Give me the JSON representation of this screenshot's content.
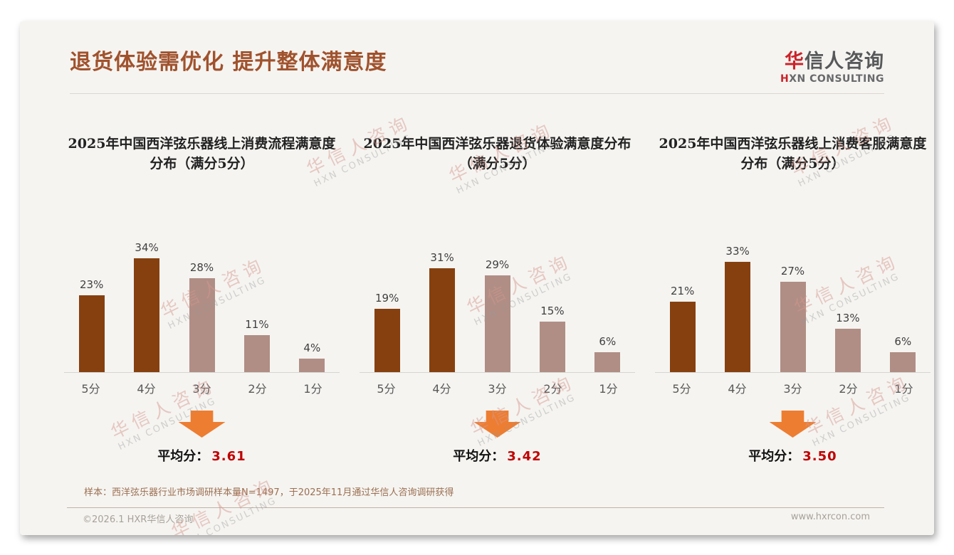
{
  "slide": {
    "title": "退货体验需优化 提升整体满意度",
    "logo": {
      "cn_red": "华",
      "cn_rest": "信人咨询",
      "en_red": "H",
      "en_rest": "XN CONSULTING"
    },
    "watermark": {
      "cn": "华信人咨询",
      "en": "HXN CONSULTING"
    },
    "footnote": "样本：西洋弦乐器行业市场调研样本量N=1497，于2025年11月通过华信人咨询调研获得",
    "footer": {
      "left": "©2026.1 HXR华信人咨询",
      "right": "www.hxrcon.com"
    }
  },
  "colors": {
    "accent": "#A0522D",
    "logo_red": "#CC2229",
    "bar_dark": "#86400F",
    "bar_light": "#B08E85",
    "arrow": "#ED7D31",
    "avg_red": "#C00000"
  },
  "chart_data": [
    {
      "type": "bar",
      "title": "2025年中国西洋弦乐器线上消费流程满意度分布（满分5分）",
      "categories": [
        "5分",
        "4分",
        "3分",
        "2分",
        "1分"
      ],
      "values": [
        23,
        34,
        28,
        11,
        4
      ],
      "unit": "%",
      "ylim": [
        0,
        40
      ],
      "grid": false,
      "bar_color_roles": [
        "dark",
        "dark",
        "light",
        "light",
        "light"
      ],
      "average_label": "平均分：",
      "average": "3.61"
    },
    {
      "type": "bar",
      "title": "2025年中国西洋弦乐器退货体验满意度分布（满分5分）",
      "categories": [
        "5分",
        "4分",
        "3分",
        "2分",
        "1分"
      ],
      "values": [
        19,
        31,
        29,
        15,
        6
      ],
      "unit": "%",
      "ylim": [
        0,
        40
      ],
      "grid": false,
      "bar_color_roles": [
        "dark",
        "dark",
        "light",
        "light",
        "light"
      ],
      "average_label": "平均分：",
      "average": "3.42"
    },
    {
      "type": "bar",
      "title": "2025年中国西洋弦乐器线上消费客服满意度分布（满分5分）",
      "categories": [
        "5分",
        "4分",
        "3分",
        "2分",
        "1分"
      ],
      "values": [
        21,
        33,
        27,
        13,
        6
      ],
      "unit": "%",
      "ylim": [
        0,
        40
      ],
      "grid": false,
      "bar_color_roles": [
        "dark",
        "dark",
        "light",
        "light",
        "light"
      ],
      "average_label": "平均分：",
      "average": "3.50"
    }
  ]
}
